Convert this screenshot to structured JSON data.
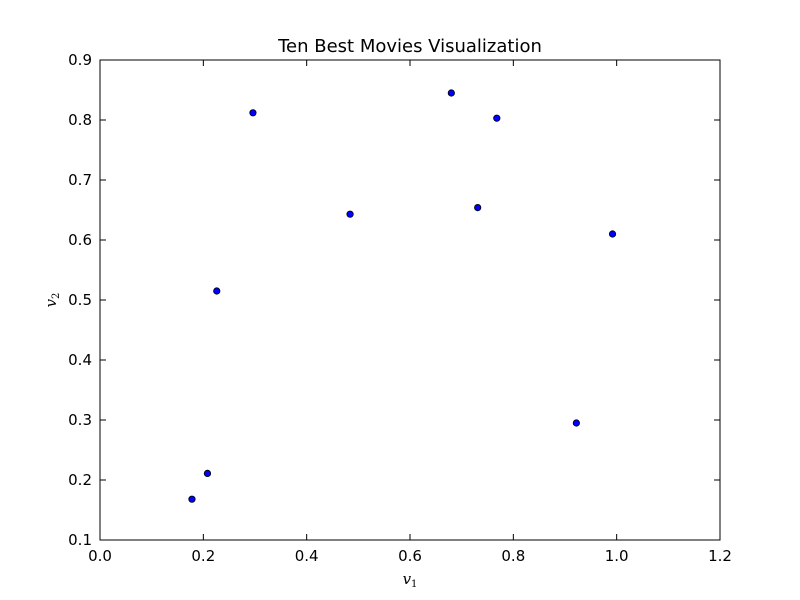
{
  "chart_data": {
    "type": "scatter",
    "title": "Ten Best Movies Visualization",
    "xlabel": "v",
    "xlabel_sub": "1",
    "ylabel": "v",
    "ylabel_sub": "2",
    "xlim": [
      0.0,
      1.2
    ],
    "ylim": [
      0.1,
      0.9
    ],
    "xticks": [
      0.0,
      0.2,
      0.4,
      0.6,
      0.8,
      1.0,
      1.2
    ],
    "xtick_labels": [
      "0.0",
      "0.2",
      "0.4",
      "0.6",
      "0.8",
      "1.0",
      "1.2"
    ],
    "yticks": [
      0.1,
      0.2,
      0.3,
      0.4,
      0.5,
      0.6,
      0.7,
      0.8,
      0.9
    ],
    "ytick_labels": [
      "0.1",
      "0.2",
      "0.3",
      "0.4",
      "0.5",
      "0.6",
      "0.7",
      "0.8",
      "0.9"
    ],
    "grid": false,
    "marker_color": "#0000ff",
    "points": [
      {
        "x": 0.178,
        "y": 0.168
      },
      {
        "x": 0.208,
        "y": 0.211
      },
      {
        "x": 0.226,
        "y": 0.515
      },
      {
        "x": 0.296,
        "y": 0.812
      },
      {
        "x": 0.484,
        "y": 0.643
      },
      {
        "x": 0.68,
        "y": 0.845
      },
      {
        "x": 0.731,
        "y": 0.654
      },
      {
        "x": 0.768,
        "y": 0.803
      },
      {
        "x": 0.922,
        "y": 0.295
      },
      {
        "x": 0.992,
        "y": 0.61
      }
    ]
  }
}
